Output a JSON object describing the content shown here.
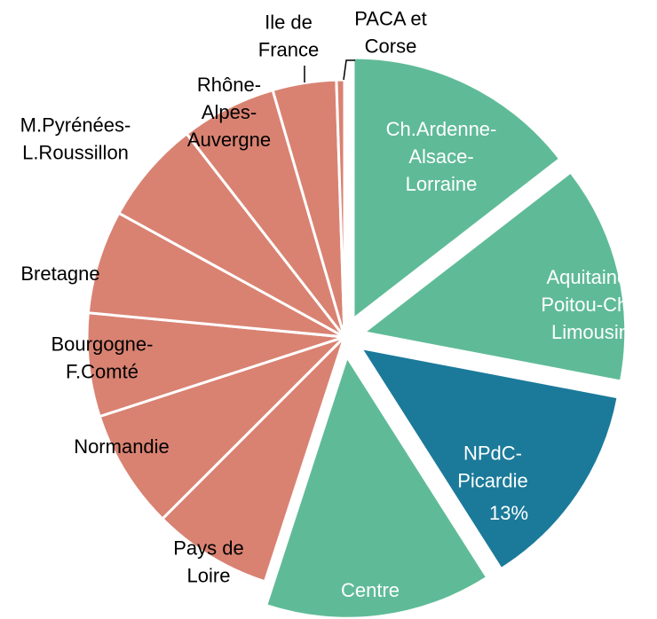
{
  "chart_data": {
    "type": "pie",
    "categories": [
      "Ch.Ardenne-\nAlsace-\nLorraine",
      "Aquitaine-\nPoitou-Ch.-\nLimousin",
      "NPdC-\nPicardie",
      "Centre",
      "Pays de\nLoire",
      "Normandie",
      "Bourgogne-\nF.Comté",
      "Bretagne",
      "M.Pyrénées-\nL.Roussillon",
      "Rhône-\nAlpes-\nAuvergne",
      "Ile de\nFrance",
      "PACA et\nCorse"
    ],
    "values": [
      14.5,
      13.5,
      13,
      14,
      7.5,
      7.5,
      6.5,
      6.5,
      6.5,
      6,
      4,
      0.5
    ],
    "value_labels": [
      null,
      null,
      "13%",
      null,
      null,
      null,
      null,
      null,
      null,
      null,
      null,
      null
    ],
    "colors": [
      "#5fbb97",
      "#5fbb97",
      "#1b7a9a",
      "#5fbb97",
      "#d98272",
      "#d98272",
      "#d98272",
      "#d98272",
      "#d98272",
      "#d98272",
      "#d98272",
      "#d98272"
    ],
    "exploded": [
      true,
      true,
      true,
      true,
      false,
      false,
      false,
      false,
      false,
      false,
      false,
      false
    ]
  }
}
